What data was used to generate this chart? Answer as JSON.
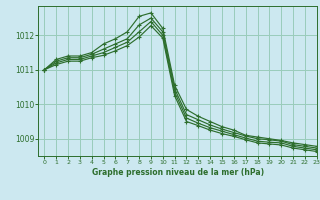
{
  "title": "Graphe pression niveau de la mer (hPa)",
  "background_color": "#cce8f0",
  "grid_color": "#99ccbb",
  "line_color": "#2d6e2d",
  "xlim": [
    -0.5,
    23
  ],
  "ylim": [
    1008.5,
    1012.85
  ],
  "yticks": [
    1009,
    1010,
    1011,
    1012
  ],
  "xticks": [
    0,
    1,
    2,
    3,
    4,
    5,
    6,
    7,
    8,
    9,
    10,
    11,
    12,
    13,
    14,
    15,
    16,
    17,
    18,
    19,
    20,
    21,
    22,
    23
  ],
  "series": [
    [
      1011.0,
      1011.3,
      1011.4,
      1011.4,
      1011.5,
      1011.75,
      1011.9,
      1012.1,
      1012.55,
      1012.65,
      1012.2,
      1010.55,
      1009.85,
      1009.65,
      1009.5,
      1009.35,
      1009.25,
      1009.1,
      1009.05,
      1009.0,
      1008.95,
      1008.88,
      1008.83,
      1008.78
    ],
    [
      1011.0,
      1011.25,
      1011.35,
      1011.35,
      1011.45,
      1011.6,
      1011.75,
      1011.9,
      1012.3,
      1012.5,
      1012.1,
      1010.45,
      1009.7,
      1009.55,
      1009.4,
      1009.28,
      1009.18,
      1009.08,
      1009.0,
      1008.97,
      1008.93,
      1008.83,
      1008.78,
      1008.73
    ],
    [
      1011.0,
      1011.2,
      1011.3,
      1011.3,
      1011.4,
      1011.5,
      1011.65,
      1011.8,
      1012.1,
      1012.4,
      1012.0,
      1010.35,
      1009.6,
      1009.45,
      1009.32,
      1009.22,
      1009.12,
      1009.02,
      1008.93,
      1008.9,
      1008.88,
      1008.78,
      1008.73,
      1008.68
    ],
    [
      1011.0,
      1011.15,
      1011.25,
      1011.25,
      1011.35,
      1011.42,
      1011.55,
      1011.7,
      1011.95,
      1012.28,
      1011.92,
      1010.25,
      1009.5,
      1009.38,
      1009.25,
      1009.15,
      1009.07,
      1008.97,
      1008.88,
      1008.85,
      1008.82,
      1008.73,
      1008.68,
      1008.63
    ]
  ]
}
